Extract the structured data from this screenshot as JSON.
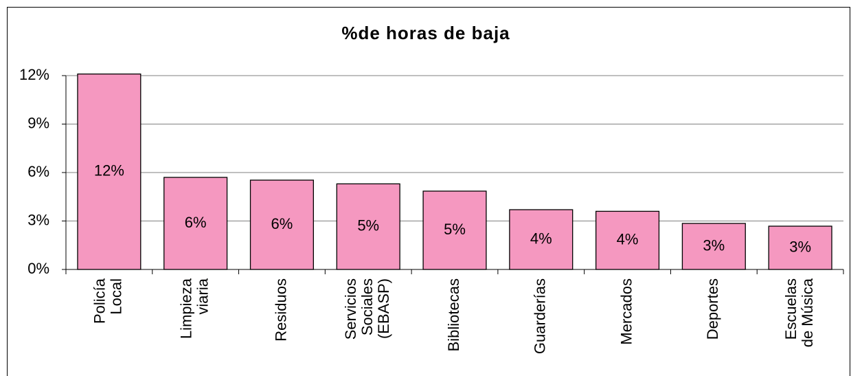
{
  "chart_data": {
    "type": "bar",
    "title": "%de horas de baja",
    "categories": [
      [
        "Policía",
        "Local"
      ],
      [
        "Limpieza",
        "viaria"
      ],
      [
        "Residuos"
      ],
      [
        "Servicios",
        "Sociales",
        "(EBASP)"
      ],
      [
        "Bibliotecas"
      ],
      [
        "Guarderías"
      ],
      [
        "Mercados"
      ],
      [
        "Deportes"
      ],
      [
        "Escuelas",
        "de Música"
      ]
    ],
    "values": [
      12.1,
      5.7,
      5.53,
      5.3,
      4.85,
      3.7,
      3.6,
      2.85,
      2.68
    ],
    "value_labels": [
      "12%",
      "6%",
      "6%",
      "5%",
      "5%",
      "4%",
      "4%",
      "3%",
      "3%"
    ],
    "color": "#f598c0",
    "ylim": [
      0,
      12
    ],
    "yticks": [
      {
        "value": 0,
        "label": "0%"
      },
      {
        "value": 3,
        "label": "3%"
      },
      {
        "value": 6,
        "label": "6%"
      },
      {
        "value": 9,
        "label": "9%"
      },
      {
        "value": 12,
        "label": "12%"
      }
    ],
    "grid": true
  }
}
